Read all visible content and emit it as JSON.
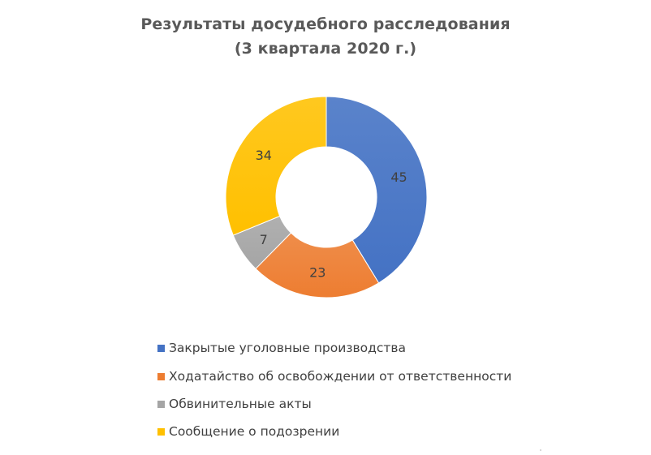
{
  "chart_data": {
    "type": "donut",
    "title": "Результаты досудебного расследования",
    "subtitle": "(3 квартала 2020 г.)",
    "categories": [
      "Закрытые уголовные производства",
      "Ходатайство об освобождении от ответственности",
      "Обвинительные акты",
      "Сообщение о подозрении"
    ],
    "values": [
      45,
      23,
      7,
      34
    ],
    "colors": [
      "#4472C4",
      "#ED7D31",
      "#A5A5A5",
      "#FFC000"
    ],
    "data_labels": [
      "45",
      "23",
      "7",
      "34"
    ],
    "legend_position": "bottom",
    "start_angle_deg": 0,
    "direction": "clockwise"
  }
}
